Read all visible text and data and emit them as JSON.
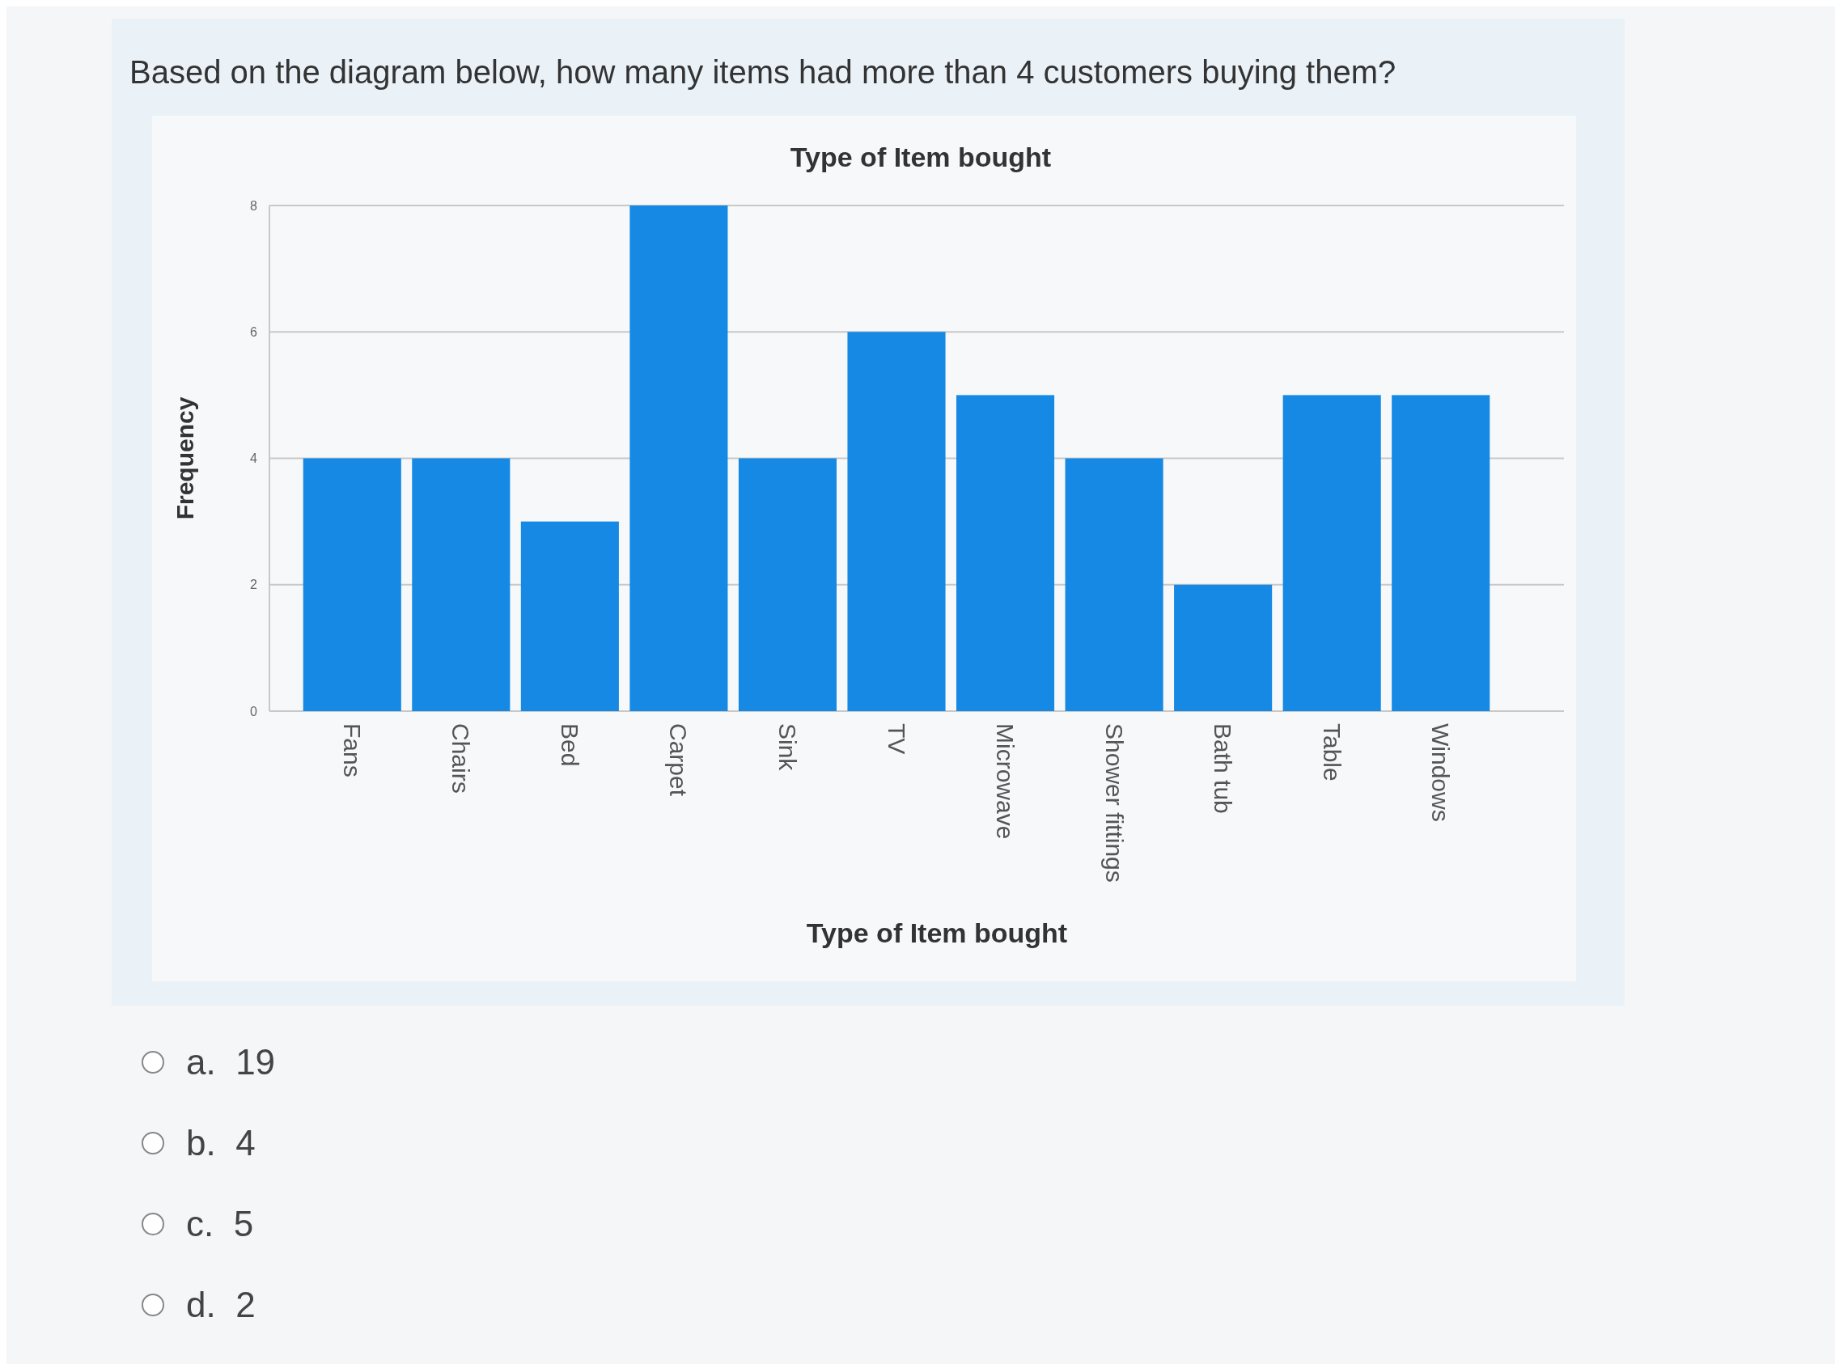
{
  "chart_data": {
    "type": "bar",
    "title": "Type of Item bought",
    "xlabel": "Type of Item bought",
    "ylabel": "Frequency",
    "categories": [
      "Fans",
      "Chairs",
      "Bed",
      "Carpet",
      "Sink",
      "TV",
      "Microwave",
      "Shower fittings",
      "Bath tub",
      "Table",
      "Windows"
    ],
    "values": [
      4,
      4,
      3,
      8,
      4,
      6,
      5,
      4,
      2,
      5,
      5
    ],
    "color": "#1589e4",
    "ylim": [
      0,
      8
    ],
    "yticks": [
      0,
      2,
      4,
      6,
      8
    ],
    "grid": "y",
    "annotations": [
      "Based on the diagram below, how many items had more than 4 customers buying them?",
      "a.  19",
      "b.  4",
      "c.  5",
      "d.  2"
    ]
  }
}
